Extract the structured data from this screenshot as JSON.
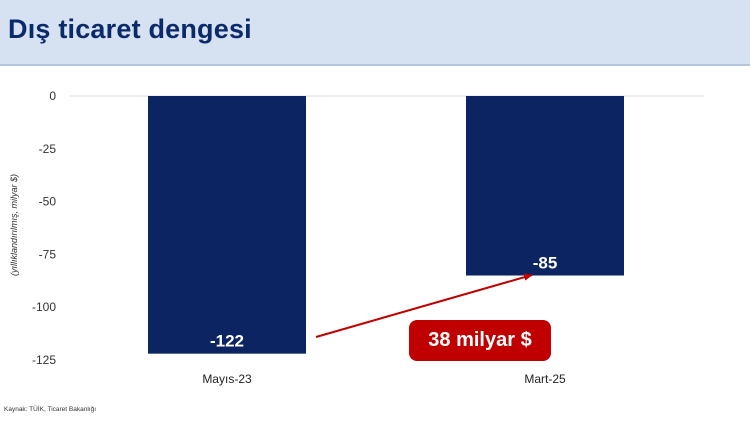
{
  "header": {
    "title": "Dış ticaret dengesi"
  },
  "chart_data": {
    "type": "bar",
    "categories": [
      "Mayıs-23",
      "Mart-25"
    ],
    "values": [
      -122,
      -85
    ],
    "data_labels": [
      "-122",
      "-85"
    ],
    "ylabel": "(yıllıklandırılmış, milyar $)",
    "xlabel": "",
    "ylim": [
      -125,
      0
    ],
    "yticks": [
      0,
      -25,
      -50,
      -75,
      -100,
      -125
    ],
    "grid": false,
    "bar_color": "#0c2461",
    "annotation": {
      "text": "38 milyar $",
      "color": "#c00000"
    }
  },
  "footer": {
    "source": "Kaynak: TÜİK, Ticaret Bakanlığı"
  },
  "colors": {
    "header_bg": "#d6e1f1",
    "title": "#0b2a6b",
    "bar": "#0c2461",
    "accent": "#c00000"
  }
}
